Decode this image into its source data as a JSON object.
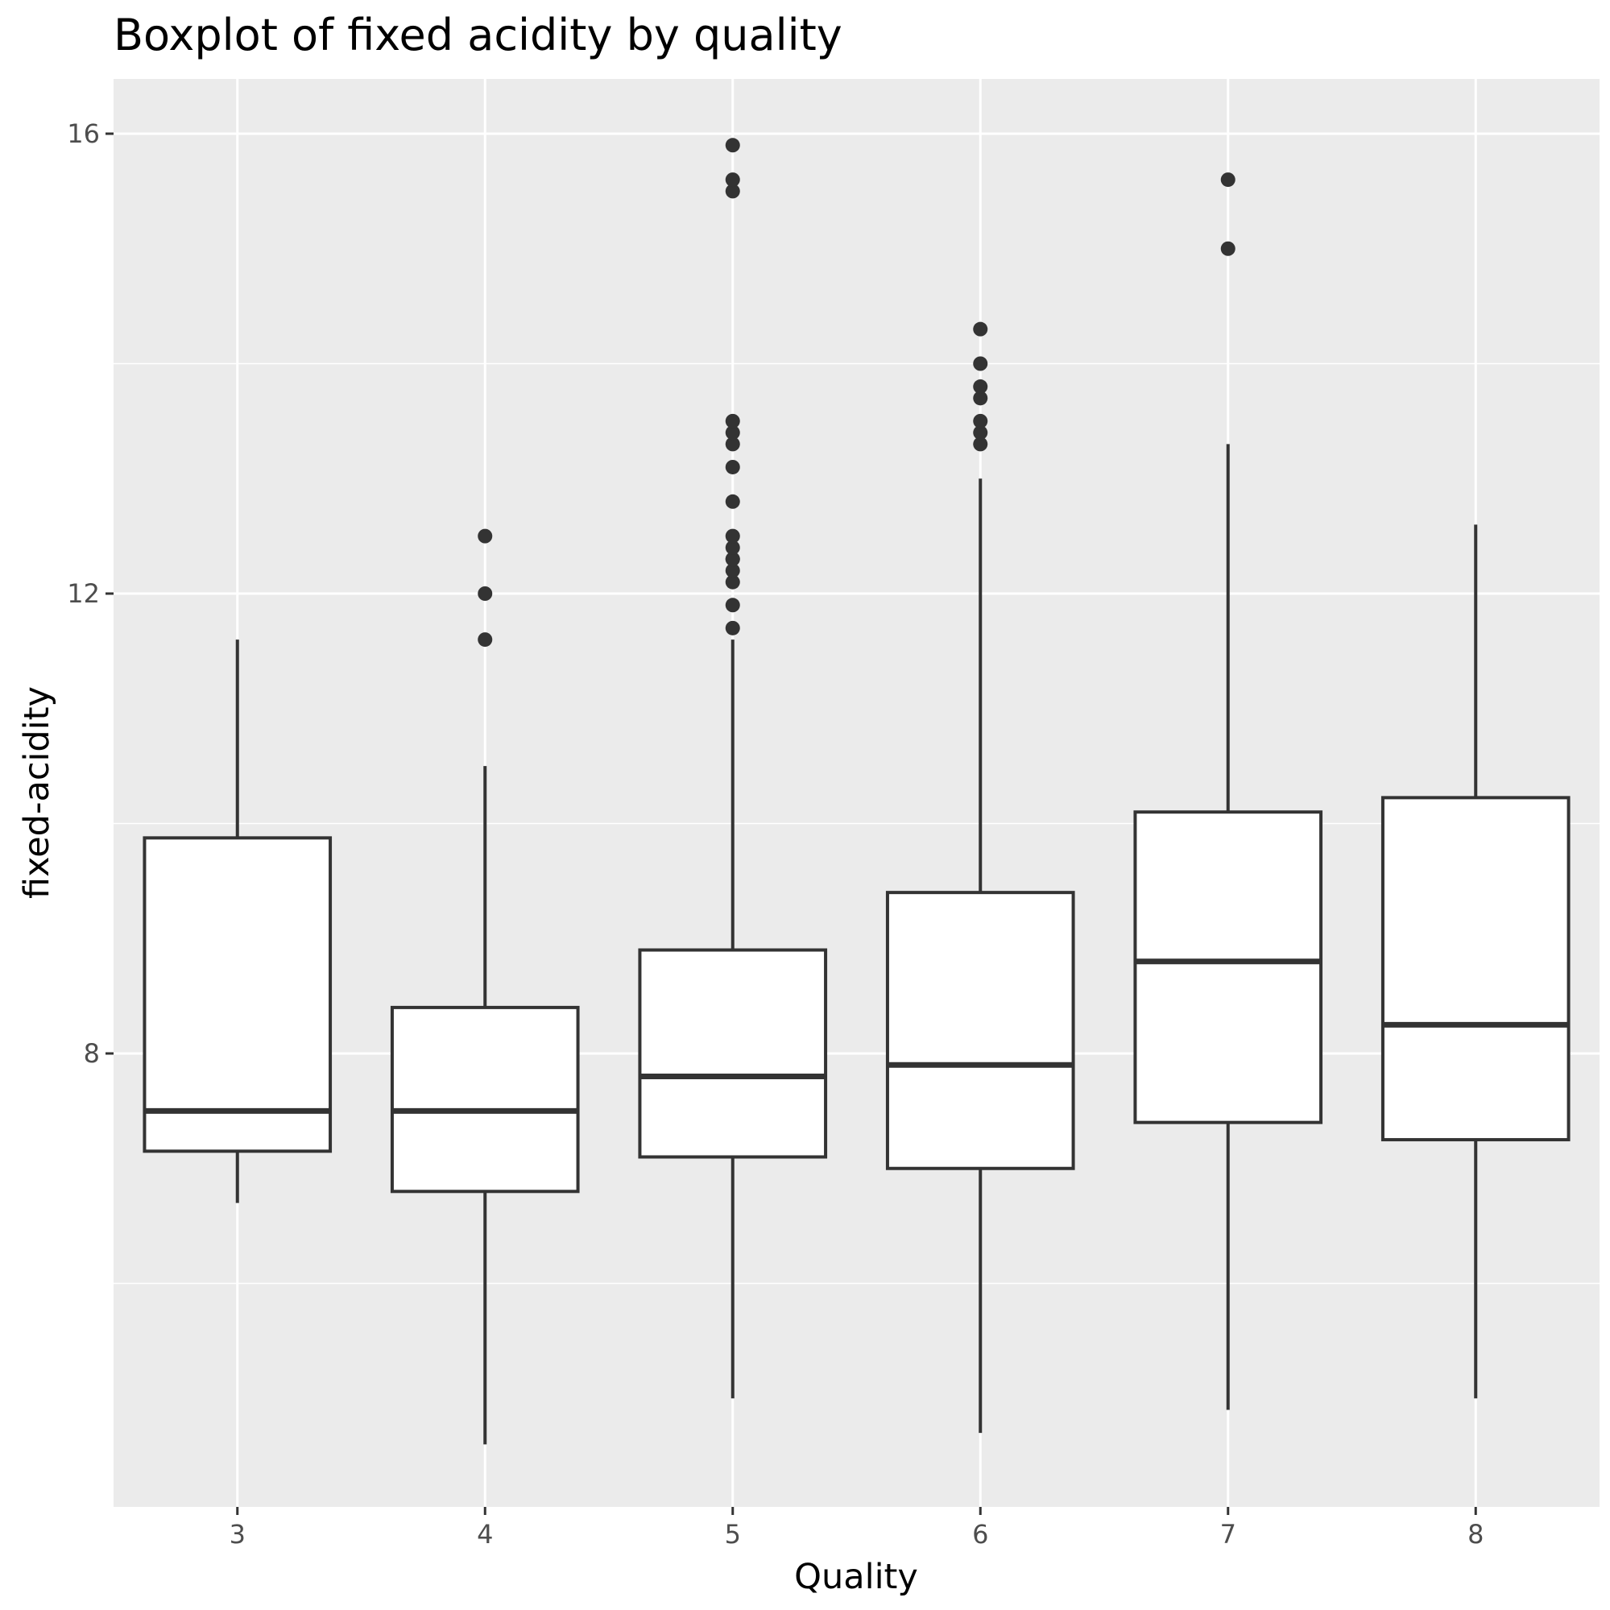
{
  "chart_data": {
    "type": "boxplot",
    "title": "Boxplot of fixed acidity by quality",
    "xlabel": "Quality",
    "ylabel": "fixed-acidity",
    "categories": [
      "3",
      "4",
      "5",
      "6",
      "7",
      "8"
    ],
    "y_ticks": [
      8,
      12,
      16
    ],
    "ylim": [
      4.1,
      16.5
    ],
    "grid": true,
    "boxes": [
      {
        "category": "3",
        "whisker_low": 6.7,
        "q1": 7.15,
        "median": 7.5,
        "q3": 9.875,
        "whisker_high": 11.6,
        "outliers": []
      },
      {
        "category": "4",
        "whisker_low": 4.6,
        "q1": 6.8,
        "median": 7.5,
        "q3": 8.4,
        "whisker_high": 10.5,
        "outliers": [
          11.6,
          12.0,
          12.5
        ]
      },
      {
        "category": "5",
        "whisker_low": 5.0,
        "q1": 7.1,
        "median": 7.8,
        "q3": 8.9,
        "whisker_high": 11.6,
        "outliers": [
          11.7,
          11.9,
          12.1,
          12.2,
          12.3,
          12.3,
          12.4,
          12.5,
          12.8,
          13.1,
          13.3,
          13.4,
          13.5,
          15.5,
          15.6,
          15.9
        ]
      },
      {
        "category": "6",
        "whisker_low": 4.7,
        "q1": 7.0,
        "median": 7.9,
        "q3": 9.4,
        "whisker_high": 13.0,
        "outliers": [
          13.3,
          13.4,
          13.5,
          13.7,
          13.8,
          14.0,
          14.3
        ]
      },
      {
        "category": "7",
        "whisker_low": 4.9,
        "q1": 7.4,
        "median": 8.8,
        "q3": 10.1,
        "whisker_high": 13.3,
        "outliers": [
          15.0,
          15.6
        ]
      },
      {
        "category": "8",
        "whisker_low": 5.0,
        "q1": 7.25,
        "median": 8.25,
        "q3": 10.225,
        "whisker_high": 12.6,
        "outliers": []
      }
    ]
  }
}
